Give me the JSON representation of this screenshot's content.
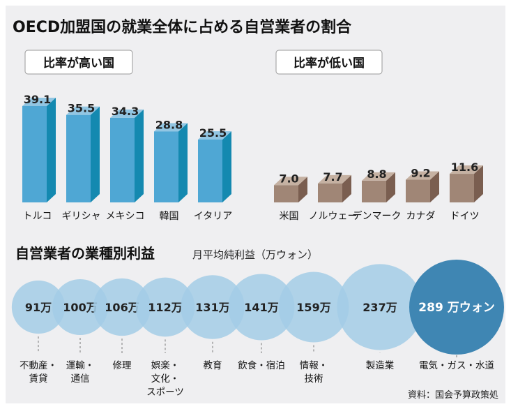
{
  "chart_data": [
    {
      "type": "bar",
      "title": "OECD加盟国の就業全体に占める自営業者の割合",
      "groups": [
        {
          "label": "比率が高い国",
          "categories": [
            "トルコ",
            "ギリシャ",
            "メキシコ",
            "韓国",
            "イタリア"
          ],
          "values": [
            39.1,
            35.5,
            34.3,
            28.8,
            25.5
          ],
          "color": "#4fa7d4"
        },
        {
          "label": "比率が低い国",
          "categories": [
            "米国",
            "ノルウェー",
            "デンマーク",
            "カナダ",
            "ドイツ"
          ],
          "values": [
            7.0,
            7.7,
            8.8,
            9.2,
            11.6
          ],
          "color": "#a08676"
        }
      ],
      "value_labels": [
        "39.1",
        "35.5",
        "34.3",
        "28.8",
        "25.5",
        "7.0",
        "7.7",
        "8.8",
        "9.2",
        "11.6"
      ]
    },
    {
      "type": "bubble",
      "title": "自営業者の業種別利益",
      "subtitle": "月平均純利益（万ウォン）",
      "categories": [
        [
          "不動産・",
          "賃貸"
        ],
        [
          "運輸・",
          "通信"
        ],
        [
          "修理"
        ],
        [
          "娯楽・",
          "文化・",
          "スポーツ"
        ],
        [
          "教育"
        ],
        [
          "飲食・宿泊"
        ],
        [
          "情報・",
          "技術"
        ],
        [
          "製造業"
        ],
        [
          "電気・ガス・水道"
        ]
      ],
      "values": [
        91,
        100,
        106,
        112,
        131,
        141,
        159,
        237,
        289
      ],
      "value_labels": [
        "91万",
        "100万",
        "106万",
        "112万",
        "131万",
        "141万",
        "159万",
        "237万",
        "289 万ウォン"
      ],
      "color": "#a3cce6",
      "highlight_color": "#3f86b3"
    }
  ],
  "source": "資料：国会予算政策処"
}
